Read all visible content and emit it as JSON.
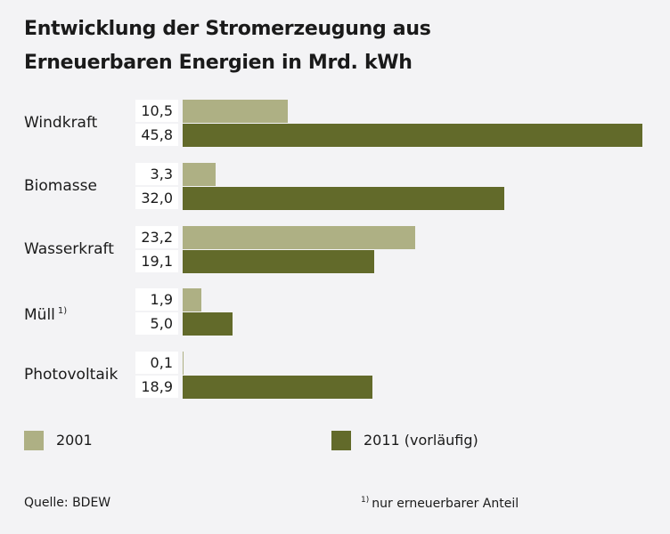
{
  "chart_data": {
    "type": "bar",
    "orientation": "horizontal",
    "title": "Entwicklung der Stromerzeugung aus Erneuerbaren Energien in Mrd. kWh",
    "title_lines": [
      "Entwicklung der Stromerzeugung aus",
      "Erneuerbaren Energien in Mrd. kWh"
    ],
    "unit": "Mrd. kWh",
    "categories": [
      "Windkraft",
      "Biomasse",
      "Wasserkraft",
      "Müll",
      "Photovoltaik"
    ],
    "category_footnotes": [
      "",
      "",
      "",
      "1)",
      ""
    ],
    "series": [
      {
        "name": "2001",
        "color": "#aeb084",
        "values": [
          10.5,
          3.3,
          23.2,
          1.9,
          0.1
        ],
        "labels": [
          "10,5",
          "3,3",
          "23,2",
          "1,9",
          "0,1"
        ]
      },
      {
        "name": "2011 (vorläufig)",
        "color": "#626a2a",
        "values": [
          45.8,
          32.0,
          19.1,
          5.0,
          18.9
        ],
        "labels": [
          "45,8",
          "32,0",
          "19,1",
          "5,0",
          "18,9"
        ]
      }
    ],
    "xlim": [
      0,
      45.8
    ],
    "grid": false,
    "legend_position": "bottom",
    "source": "Quelle: BDEW",
    "footnote_marker": "1)",
    "footnote": "nur erneuerbarer Anteil"
  }
}
